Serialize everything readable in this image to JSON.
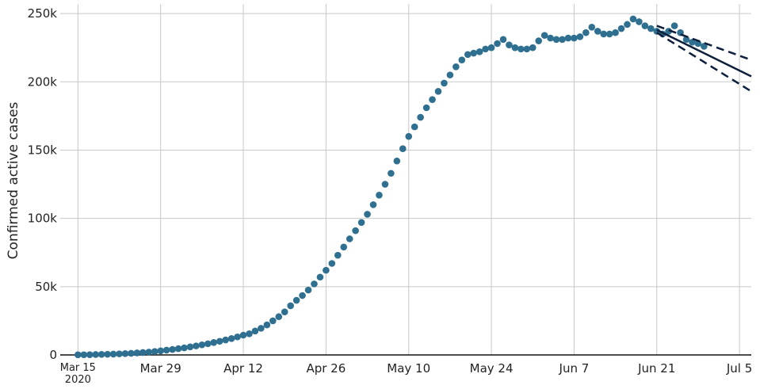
{
  "chart_data": {
    "type": "scatter",
    "y_label": "Confirmed active cases",
    "color": "#2f6f8f",
    "x_start": "2020-03-15",
    "values": [
      100,
      150,
      200,
      300,
      400,
      500,
      600,
      800,
      1000,
      1200,
      1500,
      1800,
      2100,
      2500,
      3000,
      3500,
      4000,
      4600,
      5200,
      5900,
      6600,
      7400,
      8200,
      9100,
      10000,
      11000,
      12000,
      13200,
      14500,
      15500,
      17500,
      19500,
      22000,
      25000,
      28000,
      31500,
      36000,
      40000,
      43500,
      47500,
      52000,
      57000,
      62000,
      67000,
      73000,
      79000,
      85000,
      91000,
      97000,
      103000,
      110000,
      117000,
      125000,
      133000,
      142000,
      151000,
      160000,
      167000,
      174000,
      181000,
      187000,
      193000,
      199000,
      205000,
      211000,
      216000,
      220000,
      221000,
      222000,
      224000,
      225000,
      228000,
      231000,
      227000,
      225000,
      224000,
      224000,
      225000,
      230000,
      234000,
      232000,
      231000,
      231000,
      232000,
      232000,
      233000,
      236000,
      240000,
      237000,
      235000,
      235000,
      236000,
      239000,
      242000,
      246000,
      244000,
      241000,
      239000,
      237000,
      235000,
      237000,
      241000,
      236000,
      231000,
      229000,
      228000,
      226000
    ],
    "forecast": {
      "color": "#0d1f3c",
      "x": [
        "2020-06-21",
        "2020-07-07"
      ],
      "center": [
        238000,
        204000
      ],
      "upper": [
        241000,
        216000
      ],
      "lower": [
        236000,
        193000
      ]
    },
    "xlim": [
      "2020-03-12",
      "2020-07-07"
    ],
    "xticks": [
      {
        "value": "2020-03-15",
        "label": "Mar 15\n2020"
      },
      {
        "value": "2020-03-29",
        "label": "Mar 29"
      },
      {
        "value": "2020-04-12",
        "label": "Apr 12"
      },
      {
        "value": "2020-04-26",
        "label": "Apr 26"
      },
      {
        "value": "2020-05-10",
        "label": "May 10"
      },
      {
        "value": "2020-05-24",
        "label": "May 24"
      },
      {
        "value": "2020-06-07",
        "label": "Jun 7"
      },
      {
        "value": "2020-06-21",
        "label": "Jun 21"
      },
      {
        "value": "2020-07-05",
        "label": "Jul 5"
      }
    ],
    "ylim": [
      0,
      257000
    ],
    "yticks": [
      0,
      {
        "value": 50000,
        "label": "50k"
      },
      {
        "value": 100000,
        "label": "100k"
      },
      {
        "value": 150000,
        "label": "150k"
      },
      {
        "value": 200000,
        "label": "200k"
      },
      {
        "value": 250000,
        "label": "250k"
      }
    ],
    "grid": true
  }
}
